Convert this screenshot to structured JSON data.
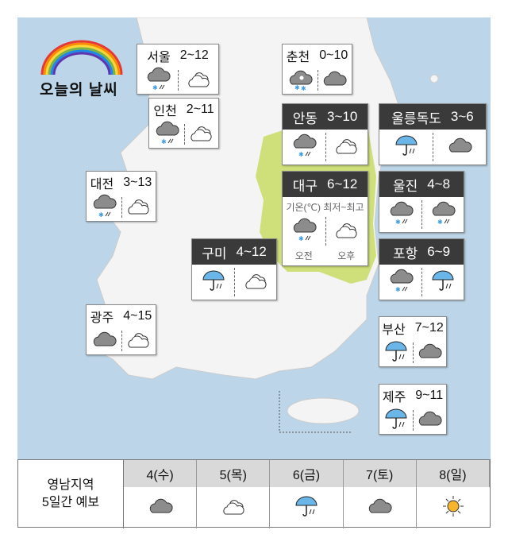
{
  "title": "오늘의 날씨",
  "colors": {
    "sea": "#bcd5e8",
    "land": "#f4f4f4",
    "yeongnam": "#cfe07a",
    "dark_header": "#3a3a3a",
    "rain_umbrella": "#6bb6e8",
    "sun": "#f7b52c"
  },
  "cities": [
    {
      "name": "서울",
      "temp": "2~12",
      "style": "light",
      "am": "cloud-rain-snow",
      "pm": "partly-cloudy"
    },
    {
      "name": "인천",
      "temp": "2~11",
      "style": "light",
      "am": "cloud-rain-snow",
      "pm": "partly-cloudy"
    },
    {
      "name": "춘천",
      "temp": "0~10",
      "style": "light",
      "am": "cloud-snow",
      "pm": "cloud"
    },
    {
      "name": "안동",
      "temp": "3~10",
      "style": "dark",
      "am": "cloud-rain-snow",
      "pm": "partly-cloudy"
    },
    {
      "name": "울릉독도",
      "temp": "3~6",
      "style": "dark",
      "am": "umbrella-rain",
      "pm": "cloud"
    },
    {
      "name": "대전",
      "temp": "3~13",
      "style": "light",
      "am": "cloud-rain-snow",
      "pm": "partly-cloudy"
    },
    {
      "name": "대구",
      "temp": "6~12",
      "style": "dark",
      "am": "cloud-rain-snow",
      "pm": "partly-cloudy"
    },
    {
      "name": "울진",
      "temp": "4~8",
      "style": "dark",
      "am": "cloud-rain-snow",
      "pm": "cloud-rain-snow"
    },
    {
      "name": "구미",
      "temp": "4~12",
      "style": "dark",
      "am": "umbrella-rain",
      "pm": "partly-cloudy"
    },
    {
      "name": "포항",
      "temp": "6~9",
      "style": "dark",
      "am": "cloud-rain-snow",
      "pm": "umbrella-rain"
    },
    {
      "name": "광주",
      "temp": "4~15",
      "style": "light",
      "am": "cloud",
      "pm": "partly-cloudy"
    },
    {
      "name": "부산",
      "temp": "7~12",
      "style": "light",
      "am": "umbrella-rain",
      "pm": "cloud"
    },
    {
      "name": "제주",
      "temp": "9~11",
      "style": "light",
      "am": "umbrella-rain",
      "pm": "cloud"
    }
  ],
  "legend": {
    "temp_label": "기온(℃) 최저~최고",
    "am": "오전",
    "pm": "오후"
  },
  "forecast": {
    "label_line1": "영남지역",
    "label_line2": "5일간 예보",
    "days": [
      {
        "day": "4(수)",
        "icon": "cloud"
      },
      {
        "day": "5(목)",
        "icon": "partly-cloudy"
      },
      {
        "day": "6(금)",
        "icon": "umbrella-rain"
      },
      {
        "day": "7(토)",
        "icon": "cloud"
      },
      {
        "day": "8(일)",
        "icon": "sun"
      }
    ]
  }
}
